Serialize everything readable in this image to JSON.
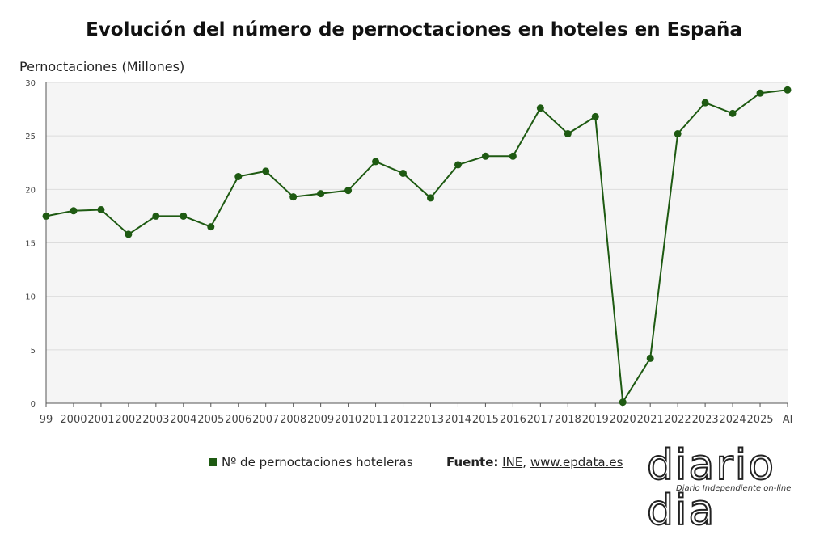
{
  "chart_data": {
    "type": "line",
    "title": "Evolución del número de pernoctaciones en hoteles en España",
    "ylabel": "Pernoctaciones (Millones)",
    "xlabel": "",
    "x": [
      "99",
      "2000",
      "2001",
      "2002",
      "2003",
      "2004",
      "2005",
      "2006",
      "2007",
      "2008",
      "2009",
      "2010",
      "2011",
      "2012",
      "2013",
      "2014",
      "2015",
      "2016",
      "2017",
      "2018",
      "2019",
      "2020",
      "2021",
      "2022",
      "2023",
      "2024",
      "2025",
      "Al"
    ],
    "series": [
      {
        "name": "Nº de pernoctaciones hoteleras",
        "values": [
          17.5,
          18.0,
          18.1,
          15.8,
          17.5,
          17.5,
          16.5,
          21.2,
          21.7,
          19.3,
          19.6,
          19.9,
          22.6,
          21.5,
          19.2,
          22.3,
          23.1,
          23.1,
          27.6,
          25.2,
          26.8,
          0.1,
          4.2,
          25.2,
          28.1,
          27.1,
          29.0,
          29.3
        ]
      }
    ],
    "ylim": [
      0,
      30
    ],
    "yticks": [
      0,
      5,
      10,
      15,
      20,
      25,
      30
    ],
    "grid": true,
    "line_color": "#1e5a12",
    "plot_background": "#f5f5f5"
  },
  "legend": {
    "label": "Nº de pernoctaciones hoteleras",
    "color": "#1e5a12"
  },
  "source": {
    "prefix": "Fuente:",
    "link1": "INE",
    "separator": ",",
    "link2": "www.epdata.es"
  },
  "logo": {
    "name": "diario dia",
    "tagline": "Diario Independiente on-line"
  }
}
